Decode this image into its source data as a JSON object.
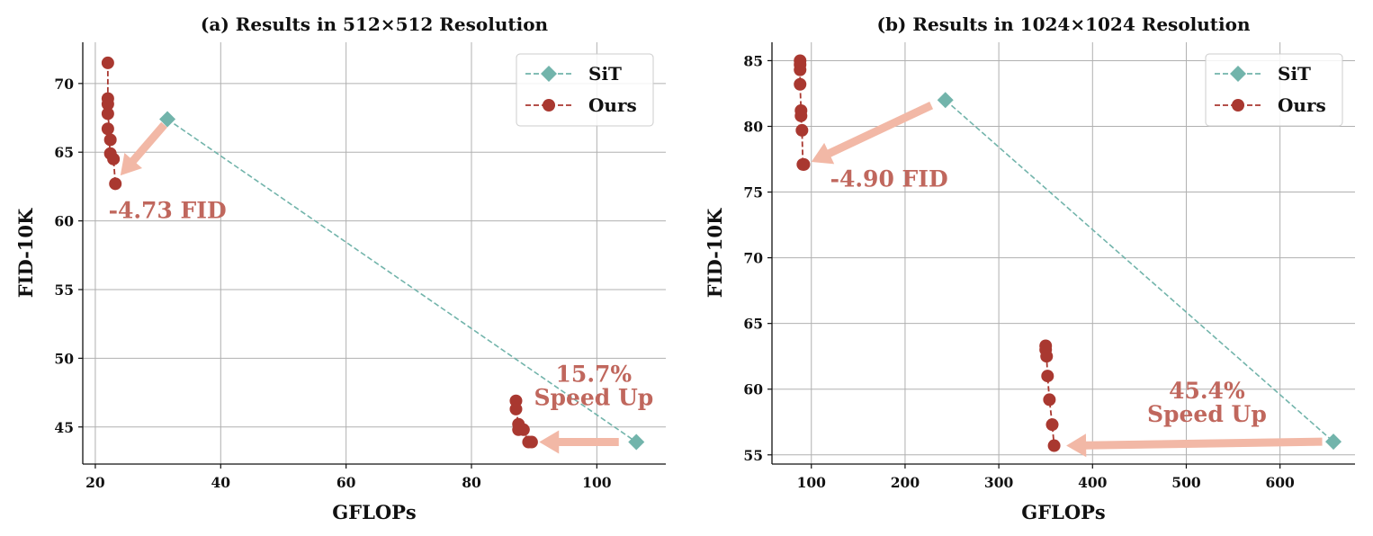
{
  "colors": {
    "sit": "#72b4ab",
    "ours": "#a93830",
    "arrow": "#f2b8a6",
    "annotation": "#c0675d",
    "grid": "#b0b0b0"
  },
  "chart_data": [
    {
      "type": "line",
      "title": "(a) Results in 512×512 Resolution",
      "xlabel": "GFLOPs",
      "ylabel": "FID-10K",
      "xlim": [
        18,
        111
      ],
      "ylim": [
        42.3,
        73
      ],
      "xticks": [
        20,
        40,
        60,
        80,
        100
      ],
      "yticks": [
        45,
        50,
        55,
        60,
        65,
        70
      ],
      "grid": true,
      "legend_position": "top-right",
      "series": [
        {
          "name": "SiT",
          "marker": "diamond",
          "linestyle": "dashed",
          "x": [
            31.5,
            106.3
          ],
          "y": [
            67.4,
            43.9
          ]
        },
        {
          "name": "Ours",
          "marker": "circle",
          "linestyle": "dashed",
          "x": [
            22.0,
            22.0,
            22.0,
            22.0,
            22.4,
            22.0,
            22.4,
            22.9,
            23.2
          ],
          "y": [
            71.5,
            68.9,
            68.5,
            67.8,
            65.9,
            66.7,
            64.9,
            64.5,
            62.7
          ]
        },
        {
          "name": "Ours",
          "marker": "circle",
          "linestyle": "dashed",
          "x": [
            87.1,
            87.1,
            87.5,
            87.5,
            88.3,
            89.1,
            89.6
          ],
          "y": [
            46.9,
            46.3,
            45.2,
            44.8,
            44.8,
            43.9,
            43.9
          ]
        }
      ],
      "annotations": [
        {
          "text": "-4.73 FID",
          "arrow_from": [
            31.0,
            67.0
          ],
          "arrow_to": [
            24.0,
            63.3
          ],
          "text_at": [
            22.1,
            60.2
          ]
        },
        {
          "text": "15.7%",
          "text2": "Speed Up",
          "arrow_from": [
            103.5,
            43.9
          ],
          "arrow_to": [
            90.8,
            43.9
          ],
          "text_at": [
            99.5,
            46.6
          ]
        }
      ]
    },
    {
      "type": "line",
      "title": "(b) Results in 1024×1024 Resolution",
      "xlabel": "GFLOPs",
      "ylabel": "FID-10K",
      "xlim": [
        58,
        680
      ],
      "ylim": [
        54.3,
        86.4
      ],
      "xticks": [
        100,
        200,
        300,
        400,
        500,
        600
      ],
      "yticks": [
        55,
        60,
        65,
        70,
        75,
        80,
        85
      ],
      "grid": true,
      "legend_position": "top-right",
      "series": [
        {
          "name": "SiT",
          "marker": "diamond",
          "linestyle": "dashed",
          "x": [
            243,
            657
          ],
          "y": [
            82.0,
            56.0
          ]
        },
        {
          "name": "Ours",
          "marker": "circle",
          "linestyle": "dashed",
          "x": [
            88,
            88,
            88,
            88,
            89,
            89,
            90,
            91,
            92
          ],
          "y": [
            85.0,
            84.7,
            84.3,
            83.2,
            81.2,
            80.8,
            79.7,
            77.1,
            77.1
          ]
        },
        {
          "name": "Ours",
          "marker": "circle",
          "linestyle": "dashed",
          "x": [
            350,
            350,
            351,
            352,
            354,
            357,
            359
          ],
          "y": [
            63.3,
            63.0,
            62.5,
            61.0,
            59.2,
            57.3,
            55.7
          ]
        }
      ],
      "annotations": [
        {
          "text": "-4.90 FID",
          "arrow_from": [
            228,
            81.6
          ],
          "arrow_to": [
            100,
            77.3
          ],
          "text_at": [
            120,
            75.4
          ]
        },
        {
          "text": "45.4%",
          "text2": "Speed Up",
          "arrow_from": [
            645,
            56.0
          ],
          "arrow_to": [
            372,
            55.7
          ],
          "text_at": [
            522,
            57.5
          ]
        }
      ]
    }
  ]
}
